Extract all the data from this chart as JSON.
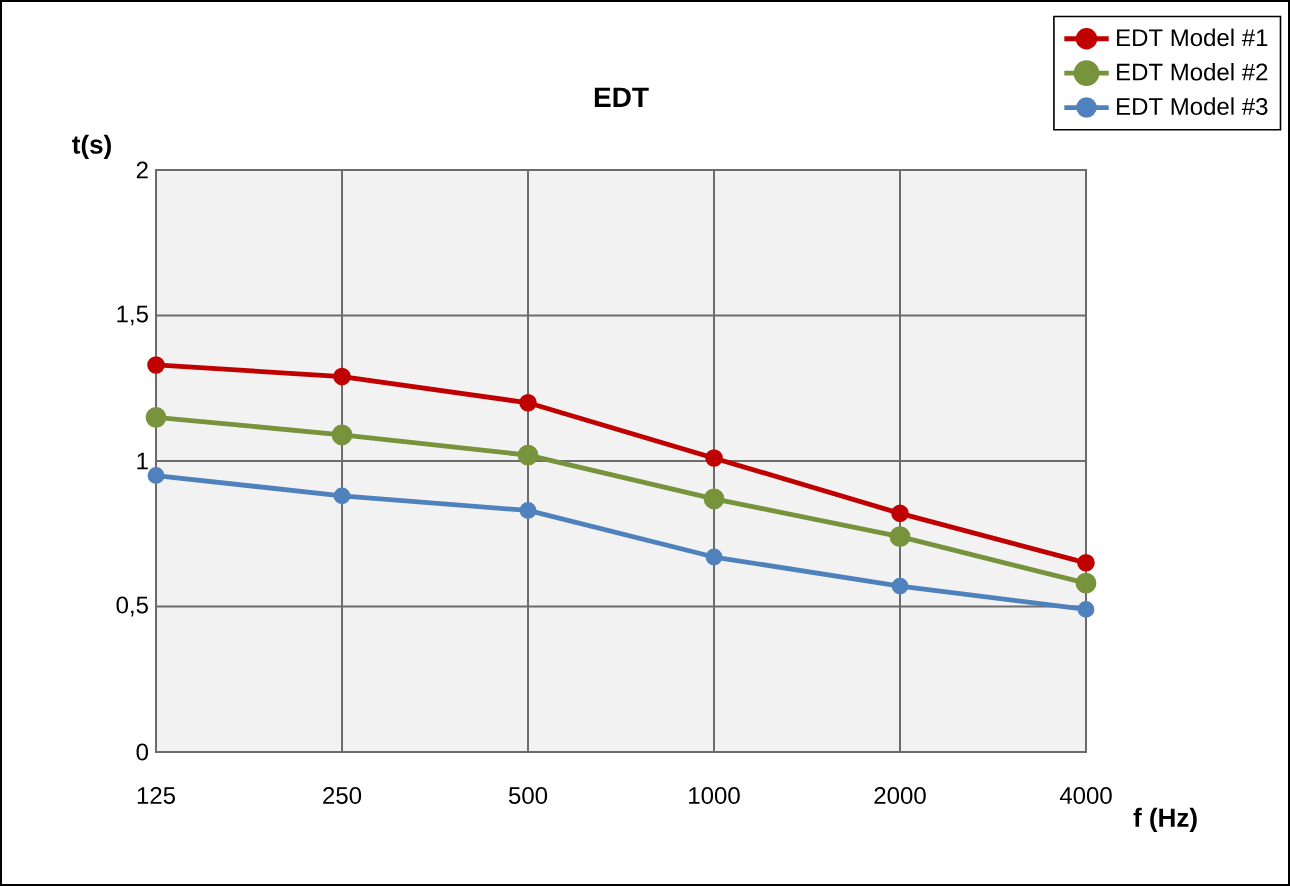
{
  "chart_data": {
    "type": "line",
    "title": "EDT",
    "xlabel": "f (Hz)",
    "ylabel": "t(s)",
    "categories": [
      "125",
      "250",
      "500",
      "1000",
      "2000",
      "4000"
    ],
    "series": [
      {
        "name": "EDT Model #1",
        "color": "#c00000",
        "values": [
          1.33,
          1.29,
          1.2,
          1.01,
          0.82,
          0.65
        ]
      },
      {
        "name": "EDT Model #2",
        "color": "#77933c",
        "values": [
          1.15,
          1.09,
          1.02,
          0.87,
          0.74,
          0.58
        ]
      },
      {
        "name": "EDT Model #3",
        "color": "#4f81bd",
        "values": [
          0.95,
          0.88,
          0.83,
          0.67,
          0.57,
          0.49
        ]
      }
    ],
    "ylim": [
      0,
      2
    ],
    "yticks": [
      0,
      {
        "value": 0.5,
        "label": "0,5"
      },
      1,
      {
        "value": 1.5,
        "label": "1,5"
      },
      2
    ],
    "grid": true,
    "legend": "top right",
    "marker": "circle",
    "line_style": "solid"
  }
}
